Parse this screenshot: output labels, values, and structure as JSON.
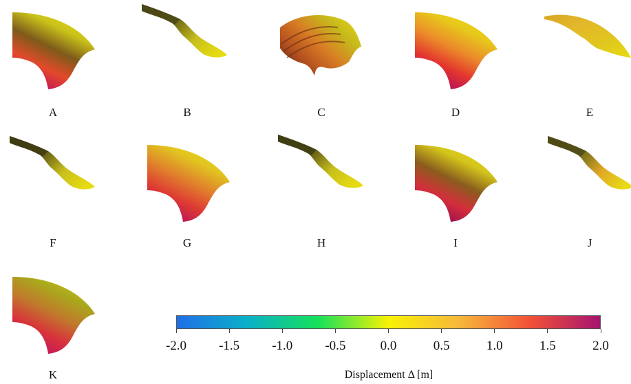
{
  "panels": [
    {
      "id": "A",
      "label": "A",
      "shape": "full",
      "gradient": [
        "#c41656",
        "#e24a2a",
        "#7d5b1a",
        "#c9c21a",
        "#e7dc12"
      ]
    },
    {
      "id": "B",
      "label": "B",
      "shape": "twisted",
      "gradient": [
        "#4b4716",
        "#6a6419",
        "#c8bf1c",
        "#e7dc12"
      ]
    },
    {
      "id": "C",
      "label": "C",
      "shape": "wrinkled",
      "gradient": [
        "#4a2414",
        "#b4501e",
        "#d87d25",
        "#c6b81c",
        "#e2d413"
      ]
    },
    {
      "id": "D",
      "label": "D",
      "shape": "full",
      "gradient": [
        "#b3105e",
        "#e3352e",
        "#eb8d2a",
        "#e7c81b",
        "#e7dc12"
      ]
    },
    {
      "id": "E",
      "label": "E",
      "shape": "strip",
      "gradient": [
        "#d8a826",
        "#e3b82a",
        "#e0c61e",
        "#e7dc12"
      ]
    },
    {
      "id": "F",
      "label": "F",
      "shape": "twisted",
      "gradient": [
        "#3f3c13",
        "#5c5617",
        "#c8bf1c",
        "#e7dc12"
      ]
    },
    {
      "id": "G",
      "label": "G",
      "shape": "full",
      "gradient": [
        "#b8135a",
        "#de3a33",
        "#e0802c",
        "#e1c320",
        "#e7dc12"
      ]
    },
    {
      "id": "H",
      "label": "H",
      "shape": "twisted",
      "gradient": [
        "#403d14",
        "#5c5617",
        "#c8bf1c",
        "#e7dc12"
      ]
    },
    {
      "id": "I",
      "label": "I",
      "shape": "full",
      "gradient": [
        "#9a0f4e",
        "#d42e3b",
        "#8a5d1d",
        "#d3c41c",
        "#e7dc12"
      ]
    },
    {
      "id": "J",
      "label": "J",
      "shape": "twisted",
      "gradient": [
        "#4e4a16",
        "#6f6a1a",
        "#e0a826",
        "#e7dc12"
      ]
    },
    {
      "id": "K",
      "label": "K",
      "shape": "full",
      "gradient": [
        "#c4165a",
        "#d8343a",
        "#c07a2c",
        "#a9a81c",
        "#cfc51a"
      ]
    }
  ],
  "colorbar": {
    "title": "Displacement Δ [m]",
    "min": -2.0,
    "max": 2.0,
    "ticks": [
      "-2.0",
      "-1.5",
      "-1.0",
      "-0.5",
      "0.0",
      "0.5",
      "1.0",
      "1.5",
      "2.0"
    ],
    "colors": [
      "#1f6fe8",
      "#0ab0c8",
      "#16e05a",
      "#f7f205",
      "#f7b83b",
      "#f25236",
      "#a61470"
    ]
  }
}
